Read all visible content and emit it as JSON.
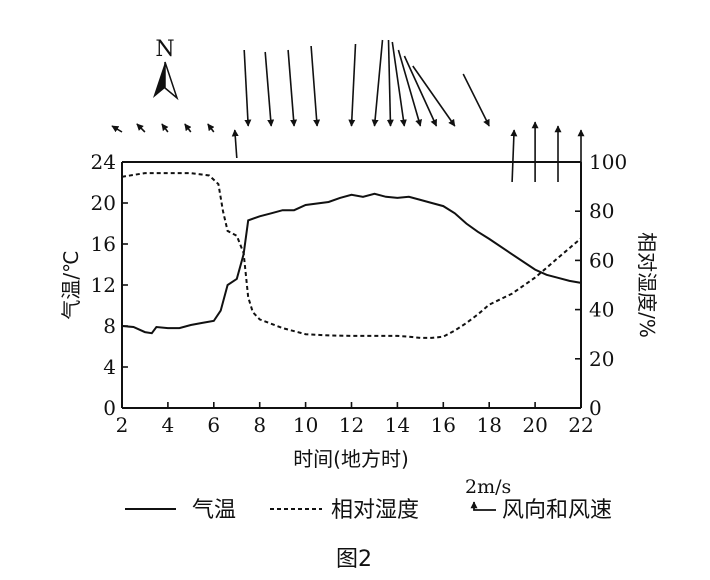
{
  "chart_data": {
    "type": "line",
    "caption": "图2",
    "compass_label": "N",
    "xlabel": "时间(地方时)",
    "ylabel_left": "气温/℃",
    "ylabel_right": "相对湿度/%",
    "xlim": [
      2,
      22
    ],
    "ylim_left": [
      0,
      24
    ],
    "ylim_right": [
      0,
      100
    ],
    "x_ticks": [
      2,
      4,
      6,
      8,
      10,
      12,
      14,
      16,
      18,
      20,
      22
    ],
    "y_ticks_left": [
      0,
      4,
      8,
      12,
      16,
      20,
      24
    ],
    "y_ticks_right": [
      0,
      20,
      40,
      60,
      80,
      100
    ],
    "grid": false,
    "series": [
      {
        "name": "气温",
        "axis": "left",
        "style": "solid",
        "x": [
          2,
          2.5,
          3,
          3.3,
          3.5,
          4,
          4.5,
          5,
          5.5,
          6,
          6.3,
          6.6,
          7,
          7.3,
          7.5,
          8,
          8.5,
          9,
          9.5,
          10,
          11,
          11.5,
          12,
          12.5,
          13,
          13.5,
          14,
          14.5,
          15,
          15.5,
          16,
          16.5,
          17,
          17.5,
          18,
          19,
          20,
          20.5,
          21,
          21.5,
          22
        ],
        "values": [
          8,
          7.9,
          7.4,
          7.3,
          7.9,
          7.8,
          7.8,
          8.1,
          8.3,
          8.5,
          9.5,
          12,
          12.6,
          15,
          18.3,
          18.7,
          19,
          19.3,
          19.3,
          19.8,
          20.1,
          20.5,
          20.8,
          20.6,
          20.9,
          20.6,
          20.5,
          20.6,
          20.3,
          20,
          19.7,
          19,
          18,
          17.2,
          16.5,
          15,
          13.5,
          13,
          12.7,
          12.4,
          12.2
        ]
      },
      {
        "name": "相对湿度",
        "axis": "right",
        "style": "dashed",
        "x": [
          2,
          3,
          4,
          5,
          5.8,
          6.2,
          6.4,
          6.6,
          7,
          7.3,
          7.5,
          7.7,
          8,
          9,
          10,
          11,
          12,
          13,
          14,
          14.5,
          15,
          15.5,
          16,
          16.5,
          17,
          17.5,
          18,
          19,
          20,
          20.5,
          21,
          21.5,
          22
        ],
        "values": [
          94,
          95.5,
          95.5,
          95.5,
          94.5,
          91,
          80,
          72,
          70,
          63,
          45,
          39,
          36,
          32.5,
          30,
          29.5,
          29.3,
          29.3,
          29.3,
          29,
          28.5,
          28.5,
          29,
          31.5,
          34.5,
          38,
          42,
          46.5,
          53,
          57,
          61,
          65,
          69
        ]
      }
    ],
    "wind": {
      "label": "风向和风速",
      "scale_label": "2m/s",
      "note": "arrow length proportional to speed; arrow points toward direction of flow",
      "observations": [
        {
          "time": 2,
          "dx": -0.5,
          "dy": 0.3
        },
        {
          "time": 3,
          "dx": -0.4,
          "dy": 0.4
        },
        {
          "time": 4,
          "dx": -0.3,
          "dy": 0.4
        },
        {
          "time": 5,
          "dx": -0.3,
          "dy": 0.4
        },
        {
          "time": 6,
          "dx": -0.3,
          "dy": 0.4
        },
        {
          "time": 7,
          "dx": -0.1,
          "dy": 1.4
        },
        {
          "time": 7.5,
          "dx": 0.2,
          "dy": -3.8
        },
        {
          "time": 8.5,
          "dx": 0.3,
          "dy": -3.7
        },
        {
          "time": 9.5,
          "dx": 0.3,
          "dy": -3.8
        },
        {
          "time": 10.5,
          "dx": 0.3,
          "dy": -4.0
        },
        {
          "time": 12,
          "dx": -0.2,
          "dy": -4.1
        },
        {
          "time": 13,
          "dx": -0.4,
          "dy": -4.3
        },
        {
          "time": 13.7,
          "dx": 0.1,
          "dy": -4.3
        },
        {
          "time": 14.3,
          "dx": 0.6,
          "dy": -4.2
        },
        {
          "time": 15,
          "dx": 1.1,
          "dy": -3.8
        },
        {
          "time": 15.7,
          "dx": 1.6,
          "dy": -3.5
        },
        {
          "time": 16.5,
          "dx": 2.1,
          "dy": -3.0
        },
        {
          "time": 18,
          "dx": 1.3,
          "dy": -2.6
        },
        {
          "time": 19,
          "dx": 0.1,
          "dy": 2.6
        },
        {
          "time": 20,
          "dx": 0.0,
          "dy": 3.0
        },
        {
          "time": 21,
          "dx": 0.0,
          "dy": 2.8
        },
        {
          "time": 22,
          "dx": 0.0,
          "dy": 2.6
        }
      ]
    }
  }
}
